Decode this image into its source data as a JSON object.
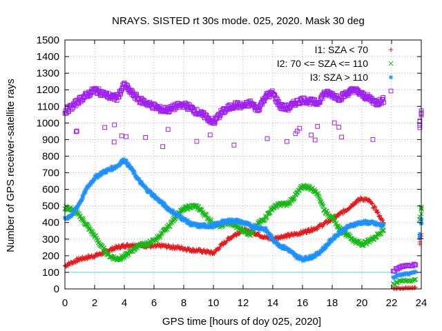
{
  "chart_data": {
    "type": "scatter",
    "title": "NRAYS. SISTED rt 30s mode. 025, 2020. Mask 30 deg",
    "xlabel": "GPS time [hours of doy 025, 2020]",
    "ylabel": "Number of GPS receiver-satellite rays",
    "xlim": [
      0,
      24
    ],
    "ylim": [
      0,
      1500
    ],
    "xticks": [
      0,
      2,
      4,
      6,
      8,
      10,
      12,
      14,
      16,
      18,
      20,
      22,
      24
    ],
    "yticks": [
      0,
      100,
      200,
      300,
      400,
      500,
      600,
      700,
      800,
      900,
      1000,
      1100,
      1200,
      1300,
      1400,
      1500
    ],
    "grid": true,
    "legend_position": "top-right",
    "reference_line": {
      "y": 100,
      "color": "#40e0e0"
    },
    "series": [
      {
        "name": "I1: SZA < 70",
        "marker": "+",
        "color": "#e41a1c",
        "x": [
          0,
          0.5,
          1,
          1.5,
          2,
          2.5,
          3,
          3.5,
          4,
          4.5,
          5,
          5.5,
          6,
          6.5,
          7,
          7.5,
          8,
          8.5,
          9,
          9.5,
          10,
          10.5,
          11,
          11.5,
          12,
          12.5,
          13,
          13.5,
          14,
          14.5,
          15,
          15.5,
          16,
          16.5,
          17,
          17.5,
          18,
          18.5,
          19,
          19.5,
          20,
          20.5,
          21,
          21.5
        ],
        "y": [
          140,
          160,
          180,
          190,
          200,
          215,
          235,
          250,
          260,
          265,
          265,
          260,
          255,
          260,
          255,
          250,
          245,
          235,
          230,
          225,
          215,
          260,
          300,
          330,
          355,
          345,
          330,
          310,
          300,
          315,
          320,
          330,
          340,
          355,
          370,
          395,
          420,
          450,
          480,
          520,
          545,
          530,
          470,
          390
        ]
      },
      {
        "name": "I2: 70 <= SZA <= 110",
        "marker": "x",
        "color": "#16b816",
        "x": [
          0,
          0.5,
          1,
          1.5,
          2,
          2.5,
          3,
          3.5,
          4,
          4.5,
          5,
          5.5,
          6,
          6.5,
          7,
          7.5,
          8,
          8.5,
          9,
          9.5,
          10,
          10.5,
          11,
          11.5,
          12,
          12.5,
          13,
          13.5,
          14,
          14.5,
          15,
          15.5,
          16,
          16.5,
          17,
          17.5,
          18,
          18.5,
          19,
          19.5,
          20,
          20.5,
          21,
          21.5
        ],
        "y": [
          490,
          480,
          440,
          380,
          320,
          250,
          200,
          180,
          195,
          230,
          265,
          270,
          290,
          330,
          380,
          440,
          480,
          500,
          490,
          440,
          390,
          380,
          400,
          380,
          355,
          330,
          390,
          430,
          490,
          510,
          510,
          560,
          620,
          610,
          580,
          470,
          430,
          360,
          330,
          290,
          270,
          290,
          320,
          360
        ]
      },
      {
        "name": "I3: SZA > 110",
        "marker": "*",
        "color": "#1e90ff",
        "x": [
          0,
          0.5,
          1,
          1.5,
          2,
          2.5,
          3,
          3.5,
          4,
          4.5,
          5,
          5.5,
          6,
          6.5,
          7,
          7.5,
          8,
          8.5,
          9,
          9.5,
          10,
          10.5,
          11,
          11.5,
          12,
          12.5,
          13,
          13.5,
          14,
          14.5,
          15,
          15.5,
          16,
          16.5,
          17,
          17.5,
          18,
          18.5,
          19,
          19.5,
          20,
          20.5,
          21,
          21.5
        ],
        "y": [
          420,
          450,
          520,
          610,
          670,
          700,
          720,
          740,
          780,
          720,
          650,
          600,
          560,
          520,
          480,
          450,
          420,
          390,
          380,
          380,
          380,
          400,
          410,
          410,
          400,
          380,
          370,
          360,
          300,
          260,
          240,
          200,
          180,
          190,
          210,
          250,
          300,
          340,
          370,
          390,
          400,
          400,
          390,
          380
        ]
      },
      {
        "name": "",
        "marker": "square",
        "color": "#a020f0",
        "x": [
          0,
          0.5,
          1,
          1.5,
          2,
          2.5,
          3,
          3.5,
          4,
          4.5,
          5,
          5.5,
          6,
          6.5,
          7,
          7.5,
          8,
          8.5,
          9,
          9.5,
          10,
          10.5,
          11,
          11.5,
          12,
          12.5,
          13,
          13.5,
          14,
          14.5,
          15,
          15.5,
          16,
          16.5,
          17,
          17.5,
          18,
          18.5,
          19,
          19.5,
          20,
          20.5,
          21,
          21.5
        ],
        "y": [
          1070,
          1100,
          1140,
          1170,
          1200,
          1180,
          1160,
          1150,
          1230,
          1180,
          1140,
          1120,
          1100,
          1080,
          1080,
          1100,
          1110,
          1090,
          1060,
          1040,
          1000,
          1060,
          1090,
          1110,
          1100,
          1120,
          1080,
          1160,
          1180,
          1100,
          1090,
          1120,
          1140,
          1130,
          1120,
          1180,
          1170,
          1150,
          1180,
          1200,
          1170,
          1150,
          1120,
          1140
        ]
      }
    ],
    "tail_segment": {
      "x": [
        22.1,
        22.3,
        22.5,
        22.7,
        22.9,
        23.1,
        23.3,
        23.5
      ],
      "I1": [
        5,
        5,
        5,
        5,
        5,
        5,
        10,
        10
      ],
      "I2": [
        30,
        40,
        45,
        50,
        50,
        50,
        50,
        55
      ],
      "I3": [
        70,
        80,
        85,
        90,
        90,
        90,
        95,
        100
      ],
      "all": [
        110,
        120,
        130,
        135,
        140,
        140,
        140,
        145
      ]
    },
    "end_points": {
      "x": [
        23.9,
        24.0
      ],
      "I1": [
        300,
        310
      ],
      "I2": [
        440,
        470
      ],
      "I3": [
        330,
        420
      ],
      "all": [
        1000,
        1050
      ]
    }
  }
}
